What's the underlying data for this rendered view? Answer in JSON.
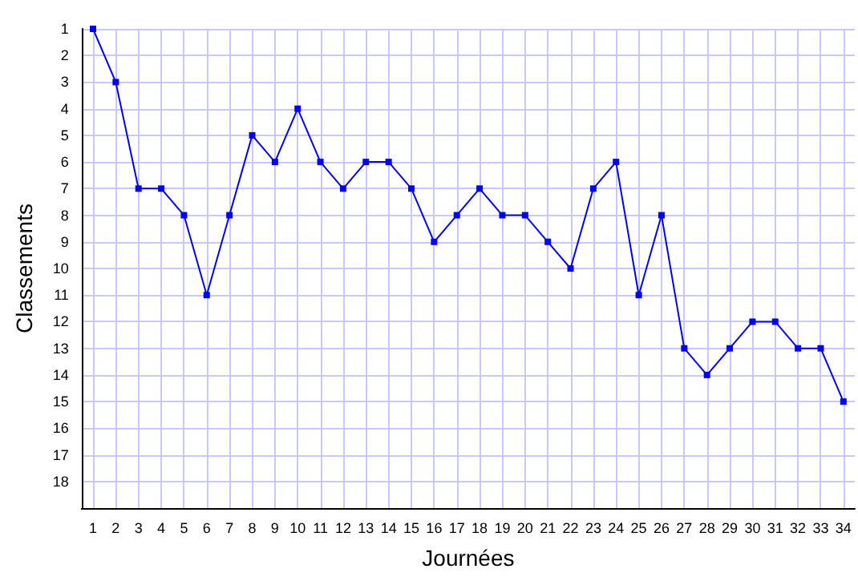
{
  "chart_data": {
    "type": "line",
    "xlabel": "Journées",
    "ylabel": "Classements",
    "x": [
      1,
      2,
      3,
      4,
      5,
      6,
      7,
      8,
      9,
      10,
      11,
      12,
      13,
      14,
      15,
      16,
      17,
      18,
      19,
      20,
      21,
      22,
      23,
      24,
      25,
      26,
      27,
      28,
      29,
      30,
      31,
      32,
      33,
      34
    ],
    "series": [
      {
        "color": "#0000ff",
        "values": [
          1,
          3,
          7,
          7,
          8,
          11,
          8,
          5,
          6,
          4,
          6,
          7,
          6,
          6,
          7,
          9,
          8,
          7,
          8,
          8,
          9,
          10,
          7,
          6,
          11,
          8,
          13,
          14,
          13,
          12,
          12,
          13,
          13,
          15
        ]
      }
    ],
    "xlim": [
      0.5,
      34.5
    ],
    "xticks": [
      1,
      2,
      3,
      4,
      5,
      6,
      7,
      8,
      9,
      10,
      11,
      12,
      13,
      14,
      15,
      16,
      17,
      18,
      19,
      20,
      21,
      22,
      23,
      24,
      25,
      26,
      27,
      28,
      29,
      30,
      31,
      32,
      33,
      34
    ],
    "ylim": [
      19,
      1
    ],
    "yticks": [
      1,
      2,
      3,
      4,
      5,
      6,
      7,
      8,
      9,
      10,
      11,
      12,
      13,
      14,
      15,
      16,
      17,
      18
    ],
    "grid": true,
    "marker": "square",
    "line_style": "solid"
  }
}
